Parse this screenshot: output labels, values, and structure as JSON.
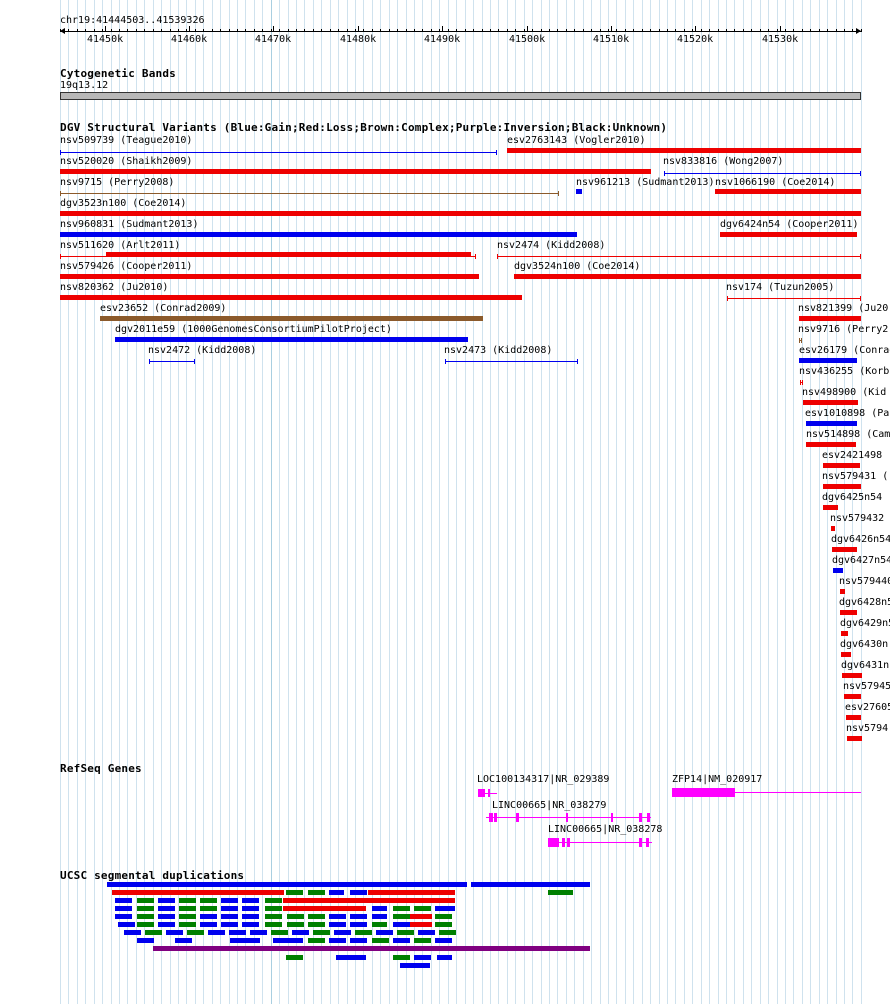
{
  "ruler": {
    "region": "chr19:41444503..41539326",
    "ticks": [
      "41450k",
      "41460k",
      "41470k",
      "41480k",
      "41490k",
      "41500k",
      "41510k",
      "41520k",
      "41530k"
    ]
  },
  "cyto": {
    "title": "Cytogenetic Bands",
    "band": "19q13.12"
  },
  "dgv": {
    "title": "DGV Structural Variants (Blue:Gain;Red:Loss;Brown:Complex;Purple:Inversion;Black:Unknown)",
    "colors": {
      "gain": "#0000ee",
      "loss": "#ee0000",
      "complex": "#8b5a2b",
      "inversion": "#800080",
      "unknown": "#000000"
    },
    "variants": [
      {
        "label": "nsv509739 (Teague2010)"
      },
      {
        "label": "esv2763143 (Vogler2010)"
      },
      {
        "label": "nsv520020 (Shaikh2009)"
      },
      {
        "label": "nsv833816 (Wong2007)"
      },
      {
        "label": "nsv9715 (Perry2008)"
      },
      {
        "label": "nsv961213 (Sudmant2013)"
      },
      {
        "label": "nsv1066190 (Coe2014)"
      },
      {
        "label": "dgv3523n100 (Coe2014)"
      },
      {
        "label": "nsv960831 (Sudmant2013)"
      },
      {
        "label": "dgv6424n54 (Cooper2011)"
      },
      {
        "label": "nsv511620 (Arlt2011)"
      },
      {
        "label": "nsv2474 (Kidd2008)"
      },
      {
        "label": "nsv579426 (Cooper2011)"
      },
      {
        "label": "dgv3524n100 (Coe2014)"
      },
      {
        "label": "nsv820362 (Ju2010)"
      },
      {
        "label": "nsv174 (Tuzun2005)"
      },
      {
        "label": "esv23652 (Conrad2009)"
      },
      {
        "label": "nsv821399 (Ju20"
      },
      {
        "label": "dgv2011e59 (1000GenomesConsortiumPilotProject)"
      },
      {
        "label": "nsv9716 (Perry2"
      },
      {
        "label": "nsv2472 (Kidd2008)"
      },
      {
        "label": "nsv2473 (Kidd2008)"
      },
      {
        "label": "esv26179 (Conrad"
      },
      {
        "label": "nsv436255 (Korb"
      },
      {
        "label": "nsv498900 (Kid"
      },
      {
        "label": "esv1010898 (Pa"
      },
      {
        "label": "nsv514898 (Cam"
      },
      {
        "label": "esv2421498"
      },
      {
        "label": "nsv579431 ("
      },
      {
        "label": "dgv6425n54"
      },
      {
        "label": "nsv579432"
      },
      {
        "label": "dgv6426n54"
      },
      {
        "label": "dgv6427n54"
      },
      {
        "label": "nsv579440"
      },
      {
        "label": "dgv6428n5"
      },
      {
        "label": "dgv6429n5"
      },
      {
        "label": "dgv6430n"
      },
      {
        "label": "dgv6431n"
      },
      {
        "label": "nsv57945"
      },
      {
        "label": "esv27605"
      },
      {
        "label": "nsv5794"
      }
    ]
  },
  "refseq": {
    "title": "RefSeq Genes",
    "genes": [
      {
        "label": "LOC100134317|NR_029389"
      },
      {
        "label": "ZFP14|NM_020917"
      },
      {
        "label": "LINC00665|NR_038279"
      },
      {
        "label": "LINC00665|NR_038278"
      }
    ],
    "color": "#ff00ff"
  },
  "segdup": {
    "title": "UCSC segmental duplications",
    "colors": [
      "#0000ee",
      "#ee0000",
      "#008000",
      "#800080"
    ]
  }
}
